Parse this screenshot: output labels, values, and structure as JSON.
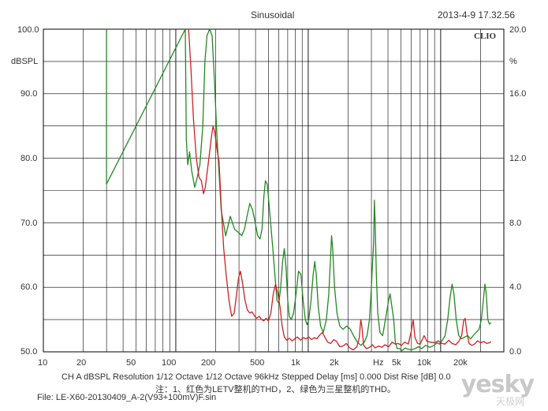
{
  "chart_data": {
    "type": "line",
    "title": "Sinusoidal",
    "timestamp": "2013-4-9 17.32.56",
    "brand": "CLIO",
    "left_axis": {
      "unit": "dBSPL",
      "range": [
        50,
        100
      ],
      "ticks": [
        "100.0",
        "90.0",
        "80.0",
        "70.0",
        "60.0",
        "50.0"
      ]
    },
    "right_axis": {
      "unit": "%",
      "range": [
        0,
        20
      ],
      "ticks": [
        "20.0",
        "16.0",
        "12.0",
        "8.0",
        "4.0",
        "0.0"
      ]
    },
    "x_axis": {
      "scale": "log",
      "range": [
        10,
        30000
      ],
      "unit": "Hz",
      "tick_values": [
        10,
        20,
        50,
        100,
        200,
        500,
        1000,
        2000,
        5000,
        10000,
        20000
      ],
      "tick_labels": [
        "10",
        "20",
        "50",
        "100",
        "200",
        "500",
        "1k",
        "2k",
        "5k",
        "10k",
        "20k"
      ]
    },
    "grid": true,
    "series": [
      {
        "color": "#228822",
        "points": [
          [
            30,
            76
          ],
          [
            30,
            100
          ],
          [
            30,
            76
          ],
          [
            118,
            100
          ],
          [
            120,
            83
          ],
          [
            123,
            79
          ],
          [
            127,
            81
          ],
          [
            132,
            78
          ],
          [
            139,
            75.5
          ],
          [
            145,
            77
          ],
          [
            152,
            79
          ],
          [
            160,
            85
          ],
          [
            166,
            95
          ],
          [
            172,
            99
          ],
          [
            180,
            100
          ],
          [
            188,
            99
          ],
          [
            196,
            92
          ],
          [
            205,
            83
          ],
          [
            220,
            72
          ],
          [
            238,
            68
          ],
          [
            258,
            71
          ],
          [
            278,
            69
          ],
          [
            298,
            68.5
          ],
          [
            315,
            68
          ],
          [
            330,
            69
          ],
          [
            345,
            71
          ],
          [
            362,
            73
          ],
          [
            380,
            72
          ],
          [
            398,
            70
          ],
          [
            415,
            68
          ],
          [
            432,
            67.5
          ],
          [
            448,
            69
          ],
          [
            462,
            74
          ],
          [
            475,
            76.5
          ],
          [
            490,
            76
          ],
          [
            505,
            73
          ],
          [
            520,
            70
          ],
          [
            540,
            66
          ],
          [
            560,
            62
          ],
          [
            580,
            58
          ],
          [
            600,
            57.5
          ],
          [
            620,
            60
          ],
          [
            640,
            64
          ],
          [
            660,
            66
          ],
          [
            680,
            63
          ],
          [
            700,
            58
          ],
          [
            720,
            55.5
          ],
          [
            745,
            55
          ],
          [
            775,
            56
          ],
          [
            810,
            59
          ],
          [
            845,
            62.5
          ],
          [
            880,
            62
          ],
          [
            915,
            58
          ],
          [
            950,
            55
          ],
          [
            980,
            54.2
          ],
          [
            1010,
            55
          ],
          [
            1050,
            58
          ],
          [
            1090,
            62
          ],
          [
            1120,
            64
          ],
          [
            1150,
            62
          ],
          [
            1190,
            57
          ],
          [
            1240,
            54
          ],
          [
            1300,
            53
          ],
          [
            1370,
            55
          ],
          [
            1430,
            59
          ],
          [
            1470,
            64
          ],
          [
            1500,
            68
          ],
          [
            1530,
            66
          ],
          [
            1580,
            60
          ],
          [
            1650,
            56
          ],
          [
            1730,
            54
          ],
          [
            1830,
            53.5
          ],
          [
            1950,
            54
          ],
          [
            2080,
            53.5
          ],
          [
            2200,
            52.5
          ],
          [
            2350,
            51.5
          ],
          [
            2500,
            51
          ],
          [
            2650,
            51.5
          ],
          [
            2780,
            52.5
          ],
          [
            2900,
            55
          ],
          [
            3000,
            60
          ],
          [
            3080,
            65
          ],
          [
            3120,
            67
          ],
          [
            3160,
            73.5
          ],
          [
            3200,
            70
          ],
          [
            3270,
            62
          ],
          [
            3350,
            56
          ],
          [
            3480,
            53
          ],
          [
            3650,
            52.5
          ],
          [
            3900,
            56
          ],
          [
            4050,
            58
          ],
          [
            4150,
            59
          ],
          [
            4280,
            57
          ],
          [
            4420,
            55
          ],
          [
            4550,
            51.5
          ],
          [
            4700,
            50.5
          ],
          [
            4900,
            50.5
          ],
          [
            5100,
            50.2
          ],
          [
            5400,
            50.6
          ],
          [
            5700,
            50.4
          ],
          [
            6000,
            50.3
          ],
          [
            6400,
            50.5
          ],
          [
            6800,
            50.8
          ],
          [
            7200,
            50.5
          ],
          [
            7700,
            51
          ],
          [
            8300,
            50.7
          ],
          [
            8900,
            51
          ],
          [
            9400,
            51.4
          ],
          [
            9800,
            51.2
          ],
          [
            10300,
            51.8
          ],
          [
            10800,
            52.5
          ],
          [
            11300,
            55
          ],
          [
            11800,
            58.5
          ],
          [
            12200,
            60.5
          ],
          [
            12600,
            59
          ],
          [
            13100,
            55
          ],
          [
            13700,
            52.5
          ],
          [
            14400,
            52
          ],
          [
            15200,
            52.3
          ],
          [
            16000,
            52.5
          ],
          [
            16800,
            52
          ],
          [
            17600,
            52.5
          ],
          [
            18500,
            53
          ],
          [
            19500,
            53.5
          ],
          [
            20300,
            55
          ],
          [
            21000,
            58
          ],
          [
            21600,
            60.5
          ],
          [
            22100,
            59
          ],
          [
            22700,
            55
          ],
          [
            23300,
            54.3
          ],
          [
            24000,
            54.5
          ]
        ]
      },
      {
        "color": "#cc2222",
        "points": [
          [
            125,
            100
          ],
          [
            130,
            94
          ],
          [
            136,
            86
          ],
          [
            143,
            80
          ],
          [
            150,
            77
          ],
          [
            156,
            76.5
          ],
          [
            162,
            74.5
          ],
          [
            167,
            75.5
          ],
          [
            173,
            78
          ],
          [
            179,
            80.5
          ],
          [
            185,
            83
          ],
          [
            191,
            85
          ],
          [
            197,
            84
          ],
          [
            204,
            81.5
          ],
          [
            212,
            79.5
          ],
          [
            221,
            72
          ],
          [
            230,
            66
          ],
          [
            240,
            62
          ],
          [
            252,
            58
          ],
          [
            264,
            55.5
          ],
          [
            276,
            56
          ],
          [
            288,
            59
          ],
          [
            298,
            61.5
          ],
          [
            308,
            62.5
          ],
          [
            320,
            60.5
          ],
          [
            333,
            58
          ],
          [
            347,
            56.5
          ],
          [
            362,
            56
          ],
          [
            376,
            56.2
          ],
          [
            392,
            55.6
          ],
          [
            408,
            55.2
          ],
          [
            426,
            55.5
          ],
          [
            444,
            55
          ],
          [
            462,
            54.8
          ],
          [
            480,
            55.2
          ],
          [
            500,
            54.8
          ],
          [
            522,
            56
          ],
          [
            545,
            59
          ],
          [
            567,
            60.5
          ],
          [
            590,
            59
          ],
          [
            612,
            57
          ],
          [
            635,
            54
          ],
          [
            660,
            52.3
          ],
          [
            690,
            51.8
          ],
          [
            720,
            52.1
          ],
          [
            755,
            51.7
          ],
          [
            790,
            52
          ],
          [
            830,
            52.3
          ],
          [
            875,
            51.8
          ],
          [
            920,
            52.2
          ],
          [
            965,
            52
          ],
          [
            1010,
            52.3
          ],
          [
            1060,
            51.9
          ],
          [
            1110,
            52.2
          ],
          [
            1160,
            52
          ],
          [
            1220,
            52.6
          ],
          [
            1280,
            53
          ],
          [
            1340,
            52.2
          ],
          [
            1400,
            51.5
          ],
          [
            1480,
            51.3
          ],
          [
            1560,
            51.9
          ],
          [
            1640,
            51.6
          ],
          [
            1730,
            50.8
          ],
          [
            1830,
            50.9
          ],
          [
            1940,
            51.3
          ],
          [
            2060,
            50.6
          ],
          [
            2190,
            50.3
          ],
          [
            2330,
            50.8
          ],
          [
            2430,
            52.2
          ],
          [
            2490,
            55
          ],
          [
            2540,
            54
          ],
          [
            2620,
            51
          ],
          [
            2750,
            50.5
          ],
          [
            2900,
            50.7
          ],
          [
            3050,
            51.1
          ],
          [
            3200,
            50.6
          ],
          [
            3400,
            50.9
          ],
          [
            3600,
            50.7
          ],
          [
            3800,
            51.1
          ],
          [
            4050,
            50.8
          ],
          [
            4300,
            51.5
          ],
          [
            4550,
            51.2
          ],
          [
            4800,
            51.3
          ],
          [
            5050,
            51
          ],
          [
            5350,
            51.5
          ],
          [
            5700,
            51.2
          ],
          [
            6000,
            53.2
          ],
          [
            6200,
            55
          ],
          [
            6400,
            52.2
          ],
          [
            6700,
            51.3
          ],
          [
            7000,
            51.2
          ],
          [
            7500,
            52.5
          ],
          [
            7900,
            51.6
          ],
          [
            8400,
            51.5
          ],
          [
            9000,
            51.4
          ],
          [
            9600,
            51.7
          ],
          [
            10200,
            51.3
          ],
          [
            10800,
            51.2
          ],
          [
            11500,
            51.8
          ],
          [
            12200,
            51.3
          ],
          [
            13000,
            51.1
          ],
          [
            13700,
            51.6
          ],
          [
            14400,
            52.5
          ],
          [
            14900,
            54.8
          ],
          [
            15300,
            55.2
          ],
          [
            15800,
            53
          ],
          [
            16400,
            51.3
          ],
          [
            17200,
            51
          ],
          [
            18000,
            51.2
          ],
          [
            19000,
            51.7
          ],
          [
            20000,
            51.4
          ],
          [
            21200,
            51.6
          ],
          [
            22300,
            51.3
          ],
          [
            23400,
            51.4
          ],
          [
            24000,
            51.6
          ]
        ]
      }
    ],
    "footer": {
      "settings": "CH A  dBSPL   Resolution 1/12 Octave   1/12 Octave   96kHz   Stepped    Delay [ms] 0.000    Dist Rise [dB] 0.0",
      "note": "注：1、红色为LETV整机的THD，2、绿色为三星整机的THD。",
      "file": "File: LE-X60-20130409_A-2(V93+100mV)F.sin"
    },
    "watermark": {
      "main": "yesky",
      "sub": "天极网"
    }
  }
}
